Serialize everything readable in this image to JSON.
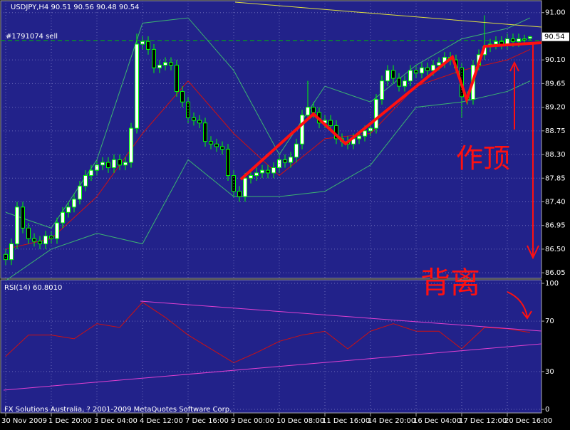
{
  "chart_data": [
    {
      "type": "candlestick",
      "title": "USDJPY,H4  90.51 90.56 90.48 90.54",
      "annotation": "#1791074 sell",
      "sell_line": 90.47,
      "notes": [
        "作顶",
        "背离"
      ],
      "footer": "FX Solutions Australia, ? 2001-2009 MetaQuotes Software Corp.",
      "up_color": "#ffffff",
      "down_color": "#000000",
      "wick_color": "#00ff00",
      "grid": true,
      "ylim": [
        85.93,
        91.24
      ],
      "yticks": [
        86.05,
        {
          "value": 86.5,
          "label": "86.50"
        },
        86.95,
        {
          "value": 87.4,
          "label": "87.40"
        },
        87.85,
        {
          "value": 88.3,
          "label": "88.30"
        },
        88.75,
        {
          "value": 89.2,
          "label": "89.20"
        },
        89.65,
        {
          "value": 90.1,
          "label": "90.10"
        },
        {
          "value": 91,
          "label": "91.00"
        }
      ],
      "categories": [
        "30 Nov 2009",
        null,
        null,
        null,
        null,
        null,
        null,
        null,
        "1 Dec 20:00",
        null,
        null,
        null,
        null,
        null,
        null,
        null,
        "3 Dec 04:00",
        null,
        null,
        null,
        null,
        null,
        null,
        null,
        "4 Dec 12:00",
        null,
        null,
        null,
        null,
        null,
        null,
        null,
        "7 Dec 16:00",
        null,
        null,
        null,
        null,
        null,
        null,
        null,
        "9 Dec 00:00",
        null,
        null,
        null,
        null,
        null,
        null,
        null,
        "10 Dec 08:00",
        null,
        null,
        null,
        null,
        null,
        null,
        null,
        "11 Dec 16:00",
        null,
        null,
        null,
        null,
        null,
        null,
        null,
        "14 Dec 20:00",
        null,
        null,
        null,
        null,
        null,
        null,
        null,
        "16 Dec 04:00",
        null,
        null,
        null,
        null,
        null,
        null,
        null,
        "17 Dec 12:00",
        null,
        null,
        null,
        null,
        null,
        null,
        null,
        "20 Dec 16:00",
        null,
        null,
        null,
        null
      ],
      "open": [
        86.4,
        86.3,
        86.6,
        87.3,
        86.9,
        86.7,
        86.65,
        86.6,
        86.75,
        86.7,
        87.0,
        87.2,
        87.3,
        87.45,
        87.7,
        87.9,
        88.0,
        88.1,
        88.15,
        88.05,
        88.2,
        88.1,
        88.15,
        88.8,
        90.4,
        90.45,
        90.3,
        89.95,
        90.0,
        90.05,
        90.0,
        89.5,
        89.3,
        89.0,
        88.95,
        88.9,
        88.55,
        88.5,
        88.45,
        88.4,
        87.9,
        87.6,
        87.5,
        87.85,
        87.9,
        87.95,
        88.0,
        87.95,
        88.05,
        88.2,
        88.15,
        88.25,
        88.5,
        89.05,
        89.2,
        89.1,
        88.9,
        88.95,
        88.85,
        88.6,
        88.55,
        88.5,
        88.6,
        88.65,
        88.75,
        88.8,
        89.35,
        89.7,
        89.9,
        89.75,
        89.6,
        89.7,
        89.9,
        89.85,
        89.95,
        89.9,
        90.0,
        90.05,
        90.15,
        90.1,
        89.95,
        89.4,
        89.35,
        90.0,
        90.2,
        90.35,
        90.4,
        90.45,
        90.4,
        90.5,
        90.45,
        90.5,
        90.51
      ],
      "high": [
        86.5,
        86.7,
        87.4,
        87.4,
        87.0,
        86.8,
        86.75,
        86.85,
        86.85,
        87.1,
        87.3,
        87.4,
        87.55,
        87.8,
        88.0,
        88.1,
        88.2,
        88.25,
        88.25,
        88.3,
        88.3,
        88.25,
        88.9,
        90.6,
        90.55,
        90.55,
        90.4,
        90.1,
        90.15,
        90.15,
        90.1,
        89.6,
        89.4,
        89.1,
        89.05,
        89.0,
        88.65,
        88.6,
        88.55,
        88.5,
        88.0,
        87.7,
        87.95,
        88.0,
        88.05,
        88.1,
        88.1,
        88.15,
        88.3,
        88.3,
        88.35,
        88.6,
        89.15,
        89.7,
        89.3,
        89.2,
        89.05,
        89.05,
        88.95,
        88.7,
        88.65,
        88.7,
        88.75,
        88.85,
        88.9,
        89.45,
        89.8,
        90.0,
        90.0,
        89.85,
        89.8,
        90.0,
        90.0,
        90.05,
        90.05,
        90.1,
        90.15,
        90.25,
        90.25,
        90.2,
        90.05,
        89.5,
        90.1,
        90.3,
        90.95,
        90.5,
        90.55,
        90.55,
        90.6,
        90.6,
        90.6,
        90.58,
        90.56
      ],
      "low": [
        86.2,
        86.2,
        86.5,
        86.8,
        86.6,
        86.55,
        86.5,
        86.5,
        86.6,
        86.6,
        86.9,
        87.1,
        87.2,
        87.35,
        87.6,
        87.8,
        87.9,
        88.0,
        87.95,
        87.95,
        88.0,
        88.0,
        88.05,
        88.7,
        90.3,
        90.2,
        89.85,
        89.85,
        89.9,
        89.9,
        89.4,
        89.2,
        88.9,
        88.85,
        88.8,
        88.45,
        88.4,
        88.35,
        88.3,
        87.8,
        87.5,
        87.4,
        87.4,
        87.75,
        87.8,
        87.85,
        87.85,
        87.85,
        87.95,
        88.05,
        88.05,
        88.15,
        88.4,
        88.95,
        89.0,
        88.8,
        88.8,
        88.75,
        88.5,
        88.45,
        88.4,
        88.4,
        88.5,
        88.55,
        88.65,
        88.7,
        89.25,
        89.6,
        89.65,
        89.5,
        89.5,
        89.6,
        89.75,
        89.75,
        89.8,
        89.8,
        89.9,
        89.95,
        90.0,
        89.85,
        89.0,
        89.25,
        89.25,
        89.9,
        90.1,
        90.25,
        90.3,
        90.3,
        90.3,
        90.35,
        90.35,
        90.4,
        90.48
      ],
      "close": [
        86.3,
        86.6,
        87.3,
        86.9,
        86.7,
        86.65,
        86.6,
        86.75,
        86.7,
        87.0,
        87.2,
        87.3,
        87.45,
        87.7,
        87.9,
        88.0,
        88.1,
        88.15,
        88.05,
        88.2,
        88.1,
        88.15,
        88.8,
        90.4,
        90.45,
        90.3,
        89.95,
        90.0,
        90.05,
        90.0,
        89.5,
        89.3,
        89.0,
        88.95,
        88.9,
        88.55,
        88.5,
        88.45,
        88.4,
        87.9,
        87.6,
        87.5,
        87.85,
        87.9,
        87.95,
        88.0,
        87.95,
        88.05,
        88.2,
        88.15,
        88.25,
        88.5,
        89.05,
        89.2,
        89.1,
        88.9,
        88.95,
        88.85,
        88.6,
        88.55,
        88.5,
        88.6,
        88.65,
        88.75,
        88.8,
        89.35,
        89.7,
        89.9,
        89.75,
        89.6,
        89.7,
        89.9,
        89.85,
        89.95,
        89.9,
        90.0,
        90.05,
        90.15,
        90.1,
        89.95,
        89.4,
        89.35,
        90.0,
        90.2,
        90.35,
        90.4,
        90.45,
        90.4,
        90.5,
        90.45,
        90.5,
        90.48,
        90.54
      ],
      "series": [
        {
          "color": "#3cb371",
          "x": [
            0,
            8,
            16,
            24,
            32,
            40,
            48,
            56,
            64,
            72,
            80,
            88,
            92
          ],
          "values": [
            87.2,
            86.9,
            88.2,
            90.8,
            90.9,
            89.9,
            88.3,
            89.6,
            89.3,
            90.0,
            90.5,
            90.7,
            90.9
          ]
        },
        {
          "color": "#d01010",
          "x": [
            0,
            8,
            16,
            24,
            32,
            40,
            48,
            56,
            64,
            72,
            80,
            88,
            92
          ],
          "values": [
            86.5,
            86.7,
            87.5,
            88.7,
            89.7,
            88.7,
            87.9,
            88.6,
            88.7,
            89.6,
            89.9,
            90.1,
            90.3
          ]
        },
        {
          "color": "#3cb371",
          "x": [
            0,
            8,
            16,
            24,
            32,
            40,
            48,
            56,
            64,
            72,
            80,
            88,
            92
          ],
          "values": [
            85.9,
            86.5,
            86.8,
            86.6,
            88.2,
            87.5,
            87.5,
            87.6,
            88.1,
            89.2,
            89.3,
            89.5,
            89.7
          ]
        }
      ]
    },
    {
      "type": "line",
      "title": "RSI(14) 60.8010",
      "ylim": [
        0,
        100
      ],
      "yticks": [
        0,
        30,
        70,
        100
      ],
      "grid": true,
      "series": [
        {
          "color": "#d01010",
          "x": [
            0,
            4,
            8,
            12,
            16,
            20,
            24,
            28,
            32,
            36,
            40,
            44,
            48,
            52,
            56,
            60,
            64,
            68,
            72,
            76,
            80,
            84,
            88,
            92
          ],
          "values": [
            42,
            59,
            59,
            56,
            68,
            65,
            85,
            73,
            59,
            48,
            37,
            45,
            54,
            59,
            62,
            48,
            62,
            68,
            62,
            62,
            48,
            65,
            64,
            61
          ]
        }
      ]
    }
  ]
}
